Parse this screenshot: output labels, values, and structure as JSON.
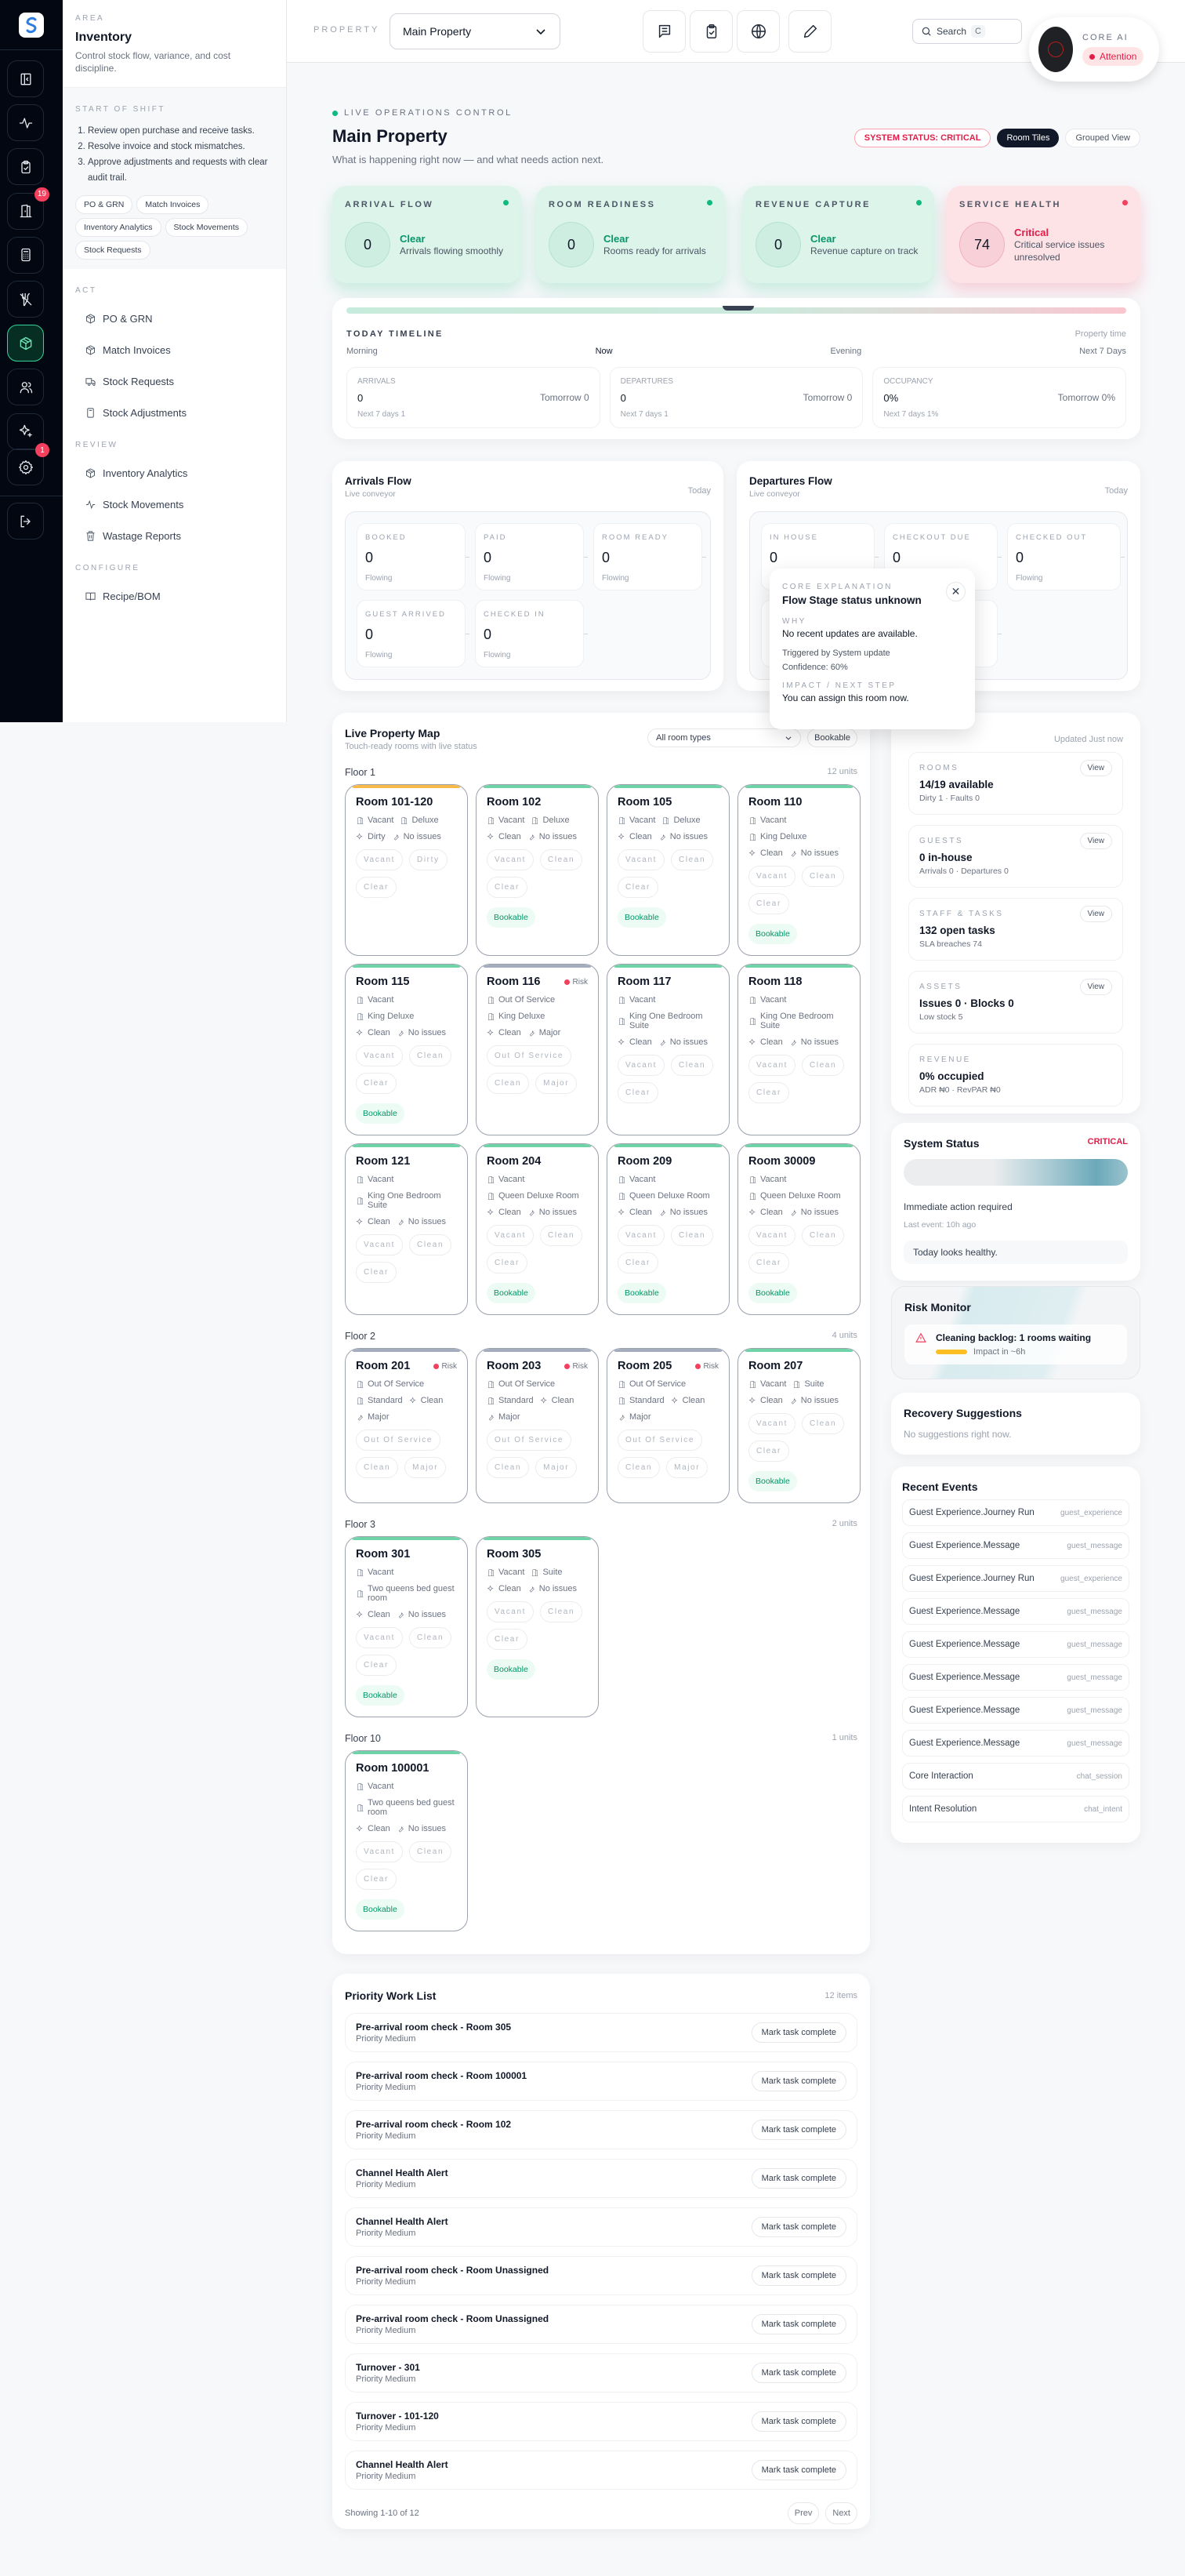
{
  "sidebar": {
    "rail_items": [
      {
        "icon": "panel-collapse-icon"
      },
      {
        "icon": "activity-icon"
      },
      {
        "icon": "clipboard-check-icon"
      },
      {
        "icon": "door-icon",
        "badge": "19"
      },
      {
        "icon": "calculator-icon"
      },
      {
        "icon": "utensils-off-icon"
      },
      {
        "icon": "package-icon",
        "active": true
      },
      {
        "icon": "users-icon"
      },
      {
        "icon": "sparkles-icon"
      },
      {
        "icon": "gear-icon",
        "badge": "1"
      }
    ],
    "logout_icon": "logout-icon",
    "area_label": "AREA",
    "area_title": "Inventory",
    "area_desc": "Control stock flow, variance, and cost discipline.",
    "shift_label": "START OF SHIFT",
    "shift_steps": [
      "Review open purchase and receive tasks.",
      "Resolve invoice and stock mismatches.",
      "Approve adjustments and requests with clear audit trail."
    ],
    "shift_chips": [
      "PO & GRN",
      "Match Invoices",
      "Inventory Analytics",
      "Stock Movements",
      "Stock Requests"
    ],
    "sections": [
      {
        "label": "ACT",
        "items": [
          {
            "label": "PO & GRN",
            "icon": "package-icon"
          },
          {
            "label": "Match Invoices",
            "icon": "package-icon"
          },
          {
            "label": "Stock Requests",
            "icon": "truck-icon"
          },
          {
            "label": "Stock Adjustments",
            "icon": "calculator-icon"
          }
        ]
      },
      {
        "label": "REVIEW",
        "items": [
          {
            "label": "Inventory Analytics",
            "icon": "package-icon"
          },
          {
            "label": "Stock Movements",
            "icon": "activity-icon"
          },
          {
            "label": "Wastage Reports",
            "icon": "trash-icon"
          }
        ]
      },
      {
        "label": "CONFIGURE",
        "items": [
          {
            "label": "Recipe/BOM",
            "icon": "book-icon"
          }
        ]
      }
    ]
  },
  "header": {
    "property_label": "PROPERTY",
    "property_value": "Main Property",
    "icons": [
      "message-icon",
      "clipboard-icon",
      "globe-icon",
      "pencil-icon"
    ],
    "search_label": "Search",
    "search_kbd": "C",
    "core_ai_label": "CORE AI",
    "core_ai_status": "Attention"
  },
  "overview": {
    "live_label": "LIVE OPERATIONS CONTROL",
    "title": "Main Property",
    "subtitle": "What is happening right now — and what needs action next.",
    "system_status": "SYSTEM STATUS: CRITICAL",
    "view_room_tiles": "Room Tiles",
    "view_grouped": "Grouped View",
    "status_cards": [
      {
        "label": "ARRIVAL FLOW",
        "value": "0",
        "status": "Clear",
        "desc": "Arrivals flowing smoothly",
        "tone": "green"
      },
      {
        "label": "ROOM READINESS",
        "value": "0",
        "status": "Clear",
        "desc": "Rooms ready for arrivals",
        "tone": "green"
      },
      {
        "label": "REVENUE CAPTURE",
        "value": "0",
        "status": "Clear",
        "desc": "Revenue capture on track",
        "tone": "green"
      },
      {
        "label": "SERVICE HEALTH",
        "value": "74",
        "status": "Critical",
        "desc": "Critical service issues unresolved",
        "tone": "red"
      }
    ],
    "colors": {
      "green": "#10b981",
      "red": "#f43f5e"
    }
  },
  "timeline": {
    "label": "TODAY TIMELINE",
    "property_time": "Property time",
    "marks": [
      "Morning",
      "Now",
      "Evening",
      "Next 7 Days"
    ],
    "stats": [
      {
        "label": "ARRIVALS",
        "value": "0",
        "tomorrow": "Tomorrow 0",
        "next": "Next 7 days 1"
      },
      {
        "label": "DEPARTURES",
        "value": "0",
        "tomorrow": "Tomorrow 0",
        "next": "Next 7 days 1"
      },
      {
        "label": "OCCUPANCY",
        "value": "0%",
        "tomorrow": "Tomorrow 0%",
        "next": "Next 7 days 1%"
      }
    ]
  },
  "arrivals_flow": {
    "title": "Arrivals Flow",
    "subtitle": "Live conveyor",
    "period": "Today",
    "stages": [
      {
        "label": "BOOKED",
        "value": "0",
        "state": "Flowing"
      },
      {
        "label": "PAID",
        "value": "0",
        "state": "Flowing"
      },
      {
        "label": "ROOM READY",
        "value": "0",
        "state": "Flowing"
      },
      {
        "label": "GUEST ARRIVED",
        "value": "0",
        "state": "Flowing"
      },
      {
        "label": "CHECKED IN",
        "value": "0",
        "state": "Flowing"
      }
    ]
  },
  "departures_flow": {
    "title": "Departures Flow",
    "subtitle": "Live conveyor",
    "period": "Today",
    "stages": [
      {
        "label": "IN HOUSE",
        "value": "0",
        "state": ""
      },
      {
        "label": "CHECKOUT DUE",
        "value": "0",
        "state": ""
      },
      {
        "label": "CHECKED OUT",
        "value": "0",
        "state": "Flowing"
      },
      {
        "label": "",
        "value": "",
        "state": ""
      },
      {
        "label": "",
        "value": "",
        "state": ""
      }
    ]
  },
  "explanation_popover": {
    "label": "CORE EXPLANATION",
    "title": "Flow Stage status unknown",
    "why_label": "WHY",
    "why": "No recent updates are available.",
    "trigger": "Triggered by System update",
    "confidence": "Confidence: 60%",
    "impact_label": "IMPACT / NEXT STEP",
    "impact": "You can assign this room now."
  },
  "property_map": {
    "title": "Live Property Map",
    "subtitle": "Touch-ready rooms with live status",
    "room_type_filter": "All room types",
    "bookable_filter": "Bookable",
    "floors": [
      {
        "name": "Floor 1",
        "units": "12 units",
        "rooms": [
          {
            "name": "Room 101-120",
            "status": "warn",
            "lines": [
              [
                "Vacant",
                "Deluxe"
              ],
              [
                "Dirty",
                "No issues"
              ]
            ],
            "tags": [
              "Vacant",
              "Dirty",
              "Clear"
            ],
            "bookable": false
          },
          {
            "name": "Room 102",
            "status": "ok",
            "lines": [
              [
                "Vacant",
                "Deluxe"
              ],
              [
                "Clean",
                "No issues"
              ]
            ],
            "tags": [
              "Vacant",
              "Clean",
              "Clear"
            ],
            "bookable": true
          },
          {
            "name": "Room 105",
            "status": "ok",
            "lines": [
              [
                "Vacant",
                "Deluxe"
              ],
              [
                "Clean",
                "No issues"
              ]
            ],
            "tags": [
              "Vacant",
              "Clean",
              "Clear"
            ],
            "bookable": true
          },
          {
            "name": "Room 110",
            "status": "ok",
            "lines": [
              [
                "Vacant"
              ],
              [
                "King Deluxe"
              ],
              [
                "Clean",
                "No issues"
              ]
            ],
            "tags": [
              "Vacant",
              "Clean",
              "Clear"
            ],
            "bookable": true
          },
          {
            "name": "Room 115",
            "status": "ok",
            "lines": [
              [
                "Vacant"
              ],
              [
                "King Deluxe"
              ],
              [
                "Clean",
                "No issues"
              ]
            ],
            "tags": [
              "Vacant",
              "Clean",
              "Clear"
            ],
            "bookable": true
          },
          {
            "name": "Room 116",
            "status": "off",
            "risk": "Risk",
            "lines": [
              [
                "Out Of Service"
              ],
              [
                "King Deluxe"
              ],
              [
                "Clean",
                "Major"
              ]
            ],
            "tags": [
              "Out Of Service",
              "Clean",
              "Major"
            ],
            "bookable": false
          },
          {
            "name": "Room 117",
            "status": "ok",
            "lines": [
              [
                "Vacant"
              ],
              [
                "King One Bedroom Suite"
              ],
              [
                "Clean",
                "No issues"
              ]
            ],
            "tags": [
              "Vacant",
              "Clean",
              "Clear"
            ],
            "bookable": false
          },
          {
            "name": "Room 118",
            "status": "ok",
            "lines": [
              [
                "Vacant"
              ],
              [
                "King One Bedroom Suite"
              ],
              [
                "Clean",
                "No issues"
              ]
            ],
            "tags": [
              "Vacant",
              "Clean",
              "Clear"
            ],
            "bookable": false
          },
          {
            "name": "Room 121",
            "status": "ok",
            "lines": [
              [
                "Vacant"
              ],
              [
                "King One Bedroom Suite"
              ],
              [
                "Clean",
                "No issues"
              ]
            ],
            "tags": [
              "Vacant",
              "Clean",
              "Clear"
            ],
            "bookable": false
          },
          {
            "name": "Room 204",
            "status": "ok",
            "lines": [
              [
                "Vacant"
              ],
              [
                "Queen Deluxe Room"
              ],
              [
                "Clean",
                "No issues"
              ]
            ],
            "tags": [
              "Vacant",
              "Clean",
              "Clear"
            ],
            "bookable": true
          },
          {
            "name": "Room 209",
            "status": "ok",
            "lines": [
              [
                "Vacant"
              ],
              [
                "Queen Deluxe Room"
              ],
              [
                "Clean",
                "No issues"
              ]
            ],
            "tags": [
              "Vacant",
              "Clean",
              "Clear"
            ],
            "bookable": true
          },
          {
            "name": "Room 30009",
            "status": "ok",
            "lines": [
              [
                "Vacant"
              ],
              [
                "Queen Deluxe Room"
              ],
              [
                "Clean",
                "No issues"
              ]
            ],
            "tags": [
              "Vacant",
              "Clean",
              "Clear"
            ],
            "bookable": true
          }
        ]
      },
      {
        "name": "Floor 2",
        "units": "4 units",
        "rooms": [
          {
            "name": "Room 201",
            "status": "off",
            "risk": "Risk",
            "lines": [
              [
                "Out Of Service"
              ],
              [
                "Standard",
                "Clean"
              ],
              [
                "Major"
              ]
            ],
            "tags": [
              "Out Of Service",
              "Clean",
              "Major"
            ],
            "bookable": false
          },
          {
            "name": "Room 203",
            "status": "off",
            "risk": "Risk",
            "lines": [
              [
                "Out Of Service"
              ],
              [
                "Standard",
                "Clean"
              ],
              [
                "Major"
              ]
            ],
            "tags": [
              "Out Of Service",
              "Clean",
              "Major"
            ],
            "bookable": false
          },
          {
            "name": "Room 205",
            "status": "off",
            "risk": "Risk",
            "lines": [
              [
                "Out Of Service"
              ],
              [
                "Standard",
                "Clean"
              ],
              [
                "Major"
              ]
            ],
            "tags": [
              "Out Of Service",
              "Clean",
              "Major"
            ],
            "bookable": false
          },
          {
            "name": "Room 207",
            "status": "ok",
            "lines": [
              [
                "Vacant",
                "Suite"
              ],
              [
                "Clean",
                "No issues"
              ]
            ],
            "tags": [
              "Vacant",
              "Clean",
              "Clear"
            ],
            "bookable": true
          }
        ]
      },
      {
        "name": "Floor 3",
        "units": "2 units",
        "rooms": [
          {
            "name": "Room 301",
            "status": "ok",
            "lines": [
              [
                "Vacant"
              ],
              [
                "Two queens bed guest room"
              ],
              [
                "Clean",
                "No issues"
              ]
            ],
            "tags": [
              "Vacant",
              "Clean",
              "Clear"
            ],
            "bookable": true
          },
          {
            "name": "Room 305",
            "status": "ok",
            "lines": [
              [
                "Vacant",
                "Suite"
              ],
              [
                "Clean",
                "No issues"
              ]
            ],
            "tags": [
              "Vacant",
              "Clean",
              "Clear"
            ],
            "bookable": true
          }
        ]
      },
      {
        "name": "Floor 10",
        "units": "1 units",
        "rooms": [
          {
            "name": "Room 100001",
            "status": "ok",
            "lines": [
              [
                "Vacant"
              ],
              [
                "Two queens bed guest room"
              ],
              [
                "Clean",
                "No issues"
              ]
            ],
            "tags": [
              "Vacant",
              "Clean",
              "Clear"
            ],
            "bookable": true
          }
        ]
      }
    ],
    "bookable_label": "Bookable",
    "status_colors": {
      "ok": "#6fd3a8",
      "warn": "#f6b94a",
      "off": "#a3adbd"
    }
  },
  "summary": {
    "updated": "Updated Just now",
    "view_label": "View",
    "boxes": [
      {
        "label": "ROOMS",
        "value": "14/19 available",
        "note": "Dirty 1 · Faults 0",
        "view": true
      },
      {
        "label": "GUESTS",
        "value": "0 in-house",
        "note": "Arrivals 0 · Departures 0",
        "view": true
      },
      {
        "label": "STAFF & TASKS",
        "value": "132 open tasks",
        "note": "SLA breaches 74",
        "view": true
      },
      {
        "label": "ASSETS",
        "value": "Issues 0 · Blocks 0",
        "note": "Low stock 5",
        "view": true
      },
      {
        "label": "REVENUE",
        "value": "0% occupied",
        "note": "ADR ₦0 · RevPAR ₦0",
        "view": false
      }
    ]
  },
  "system_status": {
    "title": "System Status",
    "level": "CRITICAL",
    "message": "Immediate action required",
    "last_event": "Last event: 10h ago",
    "note": "Today looks healthy."
  },
  "risk_monitor": {
    "title": "Risk Monitor",
    "item": "Cleaning backlog: 1 rooms waiting",
    "impact": "Impact in ~6h"
  },
  "recovery": {
    "title": "Recovery Suggestions",
    "empty": "No suggestions right now."
  },
  "recent_events": {
    "title": "Recent Events",
    "items": [
      {
        "name": "Guest Experience.Journey Run",
        "type": "guest_experience"
      },
      {
        "name": "Guest Experience.Message",
        "type": "guest_message"
      },
      {
        "name": "Guest Experience.Journey Run",
        "type": "guest_experience"
      },
      {
        "name": "Guest Experience.Message",
        "type": "guest_message"
      },
      {
        "name": "Guest Experience.Message",
        "type": "guest_message"
      },
      {
        "name": "Guest Experience.Message",
        "type": "guest_message"
      },
      {
        "name": "Guest Experience.Message",
        "type": "guest_message"
      },
      {
        "name": "Guest Experience.Message",
        "type": "guest_message"
      },
      {
        "name": "Core Interaction",
        "type": "chat_session"
      },
      {
        "name": "Intent Resolution",
        "type": "chat_intent"
      }
    ]
  },
  "work_list": {
    "title": "Priority Work List",
    "count": "12 items",
    "action_label": "Mark task complete",
    "tasks": [
      {
        "title": "Pre-arrival room check - Room 305",
        "priority": "Priority Medium"
      },
      {
        "title": "Pre-arrival room check - Room 100001",
        "priority": "Priority Medium"
      },
      {
        "title": "Pre-arrival room check - Room 102",
        "priority": "Priority Medium"
      },
      {
        "title": "Channel Health Alert",
        "priority": "Priority Medium"
      },
      {
        "title": "Channel Health Alert",
        "priority": "Priority Medium"
      },
      {
        "title": "Pre-arrival room check - Room Unassigned",
        "priority": "Priority Medium"
      },
      {
        "title": "Pre-arrival room check - Room Unassigned",
        "priority": "Priority Medium"
      },
      {
        "title": "Turnover - 301",
        "priority": "Priority Medium"
      },
      {
        "title": "Turnover - 101-120",
        "priority": "Priority Medium"
      },
      {
        "title": "Channel Health Alert",
        "priority": "Priority Medium"
      }
    ],
    "showing": "Showing 1-10 of 12",
    "prev": "Prev",
    "next": "Next"
  }
}
